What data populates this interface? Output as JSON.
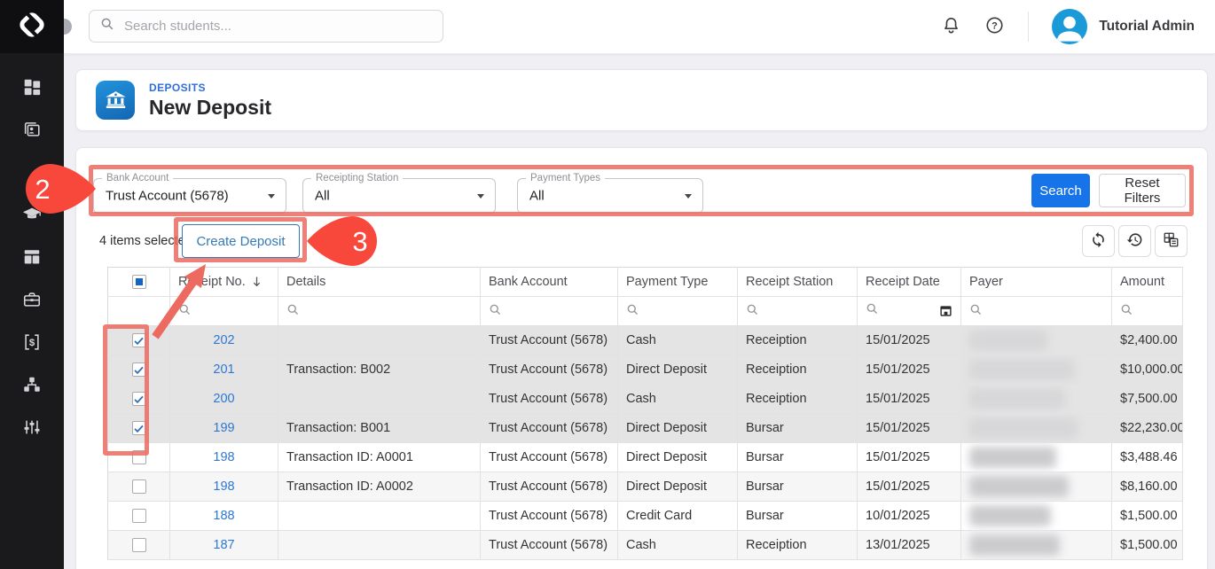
{
  "topbar": {
    "search_placeholder": "Search students...",
    "user_name": "Tutorial Admin",
    "icons": [
      "search-icon",
      "bell-icon",
      "help-icon",
      "avatar"
    ]
  },
  "sidebar": {
    "items": [
      {
        "icon": "dashboard-icon"
      },
      {
        "icon": "contacts-icon"
      },
      {
        "icon": "students-icon"
      },
      {
        "icon": "layout-icon"
      },
      {
        "icon": "briefcase-icon"
      },
      {
        "icon": "billing-icon"
      },
      {
        "icon": "network-icon"
      },
      {
        "icon": "sliders-icon"
      }
    ]
  },
  "page_header": {
    "icon": "bank-icon",
    "breadcrumb": "DEPOSITS",
    "title": "New Deposit"
  },
  "filters": {
    "fields": [
      {
        "label": "Bank Account",
        "value": "Trust Account (5678)"
      },
      {
        "label": "Receipting Station",
        "value": "All"
      },
      {
        "label": "Payment Types",
        "value": "All"
      }
    ],
    "search_label": "Search",
    "reset_label": "Reset Filters"
  },
  "toolbar": {
    "selected_text": "4 items selected",
    "create_label": "Create Deposit",
    "icons": [
      "refresh-icon",
      "history-icon",
      "column-chooser-icon"
    ]
  },
  "table": {
    "columns": [
      "Receipt No.",
      "Details",
      "Bank Account",
      "Payment Type",
      "Receipt Station",
      "Receipt Date",
      "Payer",
      "Amount"
    ],
    "sorted_column": "Receipt No.",
    "sort_direction": "desc",
    "payer_redacted": true,
    "rows": [
      {
        "checked": true,
        "receipt_no": "202",
        "details": "",
        "bank_account": "Trust Account (5678)",
        "payment_type": "Cash",
        "receipt_station": "Receiption",
        "receipt_date": "15/01/2025",
        "amount": "$2,400.00"
      },
      {
        "checked": true,
        "receipt_no": "201",
        "details": "Transaction: B002",
        "bank_account": "Trust Account (5678)",
        "payment_type": "Direct Deposit",
        "receipt_station": "Receiption",
        "receipt_date": "15/01/2025",
        "amount": "$10,000.00"
      },
      {
        "checked": true,
        "receipt_no": "200",
        "details": "",
        "bank_account": "Trust Account (5678)",
        "payment_type": "Cash",
        "receipt_station": "Receiption",
        "receipt_date": "15/01/2025",
        "amount": "$7,500.00"
      },
      {
        "checked": true,
        "receipt_no": "199",
        "details": "Transaction: B001",
        "bank_account": "Trust Account (5678)",
        "payment_type": "Direct Deposit",
        "receipt_station": "Bursar",
        "receipt_date": "15/01/2025",
        "amount": "$22,230.00"
      },
      {
        "checked": false,
        "receipt_no": "198",
        "details": "Transaction ID: A0001",
        "bank_account": "Trust Account (5678)",
        "payment_type": "Direct Deposit",
        "receipt_station": "Bursar",
        "receipt_date": "15/01/2025",
        "amount": "$3,488.46"
      },
      {
        "checked": false,
        "receipt_no": "198",
        "details": "Transaction ID: A0002",
        "bank_account": "Trust Account (5678)",
        "payment_type": "Direct Deposit",
        "receipt_station": "Bursar",
        "receipt_date": "15/01/2025",
        "amount": "$8,160.00"
      },
      {
        "checked": false,
        "receipt_no": "188",
        "details": "",
        "bank_account": "Trust Account (5678)",
        "payment_type": "Credit Card",
        "receipt_station": "Bursar",
        "receipt_date": "10/01/2025",
        "amount": "$1,500.00"
      },
      {
        "checked": false,
        "receipt_no": "187",
        "details": "",
        "bank_account": "Trust Account (5678)",
        "payment_type": "Cash",
        "receipt_station": "Receiption",
        "receipt_date": "13/01/2025",
        "amount": "$1,500.00"
      }
    ]
  },
  "annotations": {
    "step2": "2",
    "step3": "3"
  },
  "colors": {
    "accent_blue": "#1673e8",
    "outline_blue": "#337ab7",
    "link_blue": "#2e78d2",
    "avatar_blue": "#1a9bd7",
    "annotation_red": "#f8483c",
    "annotation_salmon": "#ec6a60",
    "selected_row": "#e4e4e4",
    "sidebar_bg": "#1a1a1c"
  }
}
